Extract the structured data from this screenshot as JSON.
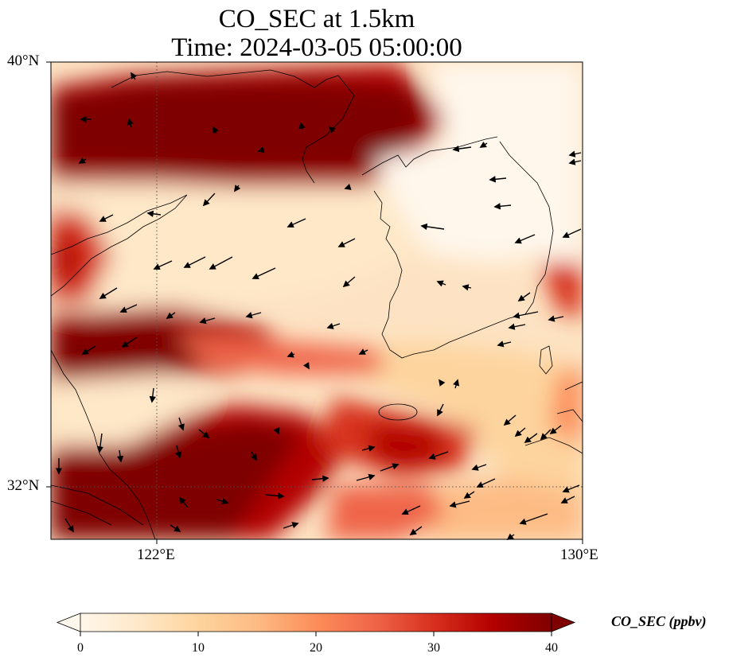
{
  "title": {
    "line1": "CO_SEC at 1.5km",
    "line2": "Time: 2024-03-05 05:00:00"
  },
  "map": {
    "projection": "PlateCarree",
    "lon_range": [
      120,
      130
    ],
    "lat_range": [
      31,
      40
    ],
    "gridlines": {
      "lons": [
        122
      ],
      "lats": [
        32
      ],
      "style": "dotted"
    },
    "lon_ticks": [
      {
        "value": 122,
        "label": "122°E"
      },
      {
        "value": 130,
        "label": "130°E"
      }
    ],
    "lat_ticks": [
      {
        "value": 40,
        "label": "40°N"
      },
      {
        "value": 32,
        "label": "32°N"
      }
    ],
    "field_description": "CO_SEC concentration bands: high values over north (Bohai/northern Yellow Sea), a central band south of 36°N, and the south-western corner; low values over the Korean Peninsula and central Yellow Sea.",
    "wind_vectors": "black arrows, predominantly from the east-northeast in the north, from the west-southwest in the south"
  },
  "colorbar": {
    "label": "CO_SEC (ppbv)",
    "colormap": "OrRd",
    "vmin": 0,
    "vmax": 40,
    "extend": "both",
    "ticks": [
      0,
      10,
      20,
      30,
      40
    ],
    "tick_labels": [
      "0",
      "10",
      "20",
      "30",
      "40"
    ],
    "colors": [
      "#fff7ec",
      "#fee8c8",
      "#fdd49e",
      "#fdbb84",
      "#fc8d59",
      "#ef6548",
      "#d7301f",
      "#b30000",
      "#7f0000"
    ]
  },
  "chart_data": {
    "type": "heatmap",
    "variable": "CO_SEC",
    "units": "ppbv",
    "level": "1.5km",
    "time": "2024-03-05 05:00:00",
    "x_range": [
      120,
      130
    ],
    "y_range": [
      31,
      40
    ],
    "vmin": 0,
    "vmax": 40
  }
}
